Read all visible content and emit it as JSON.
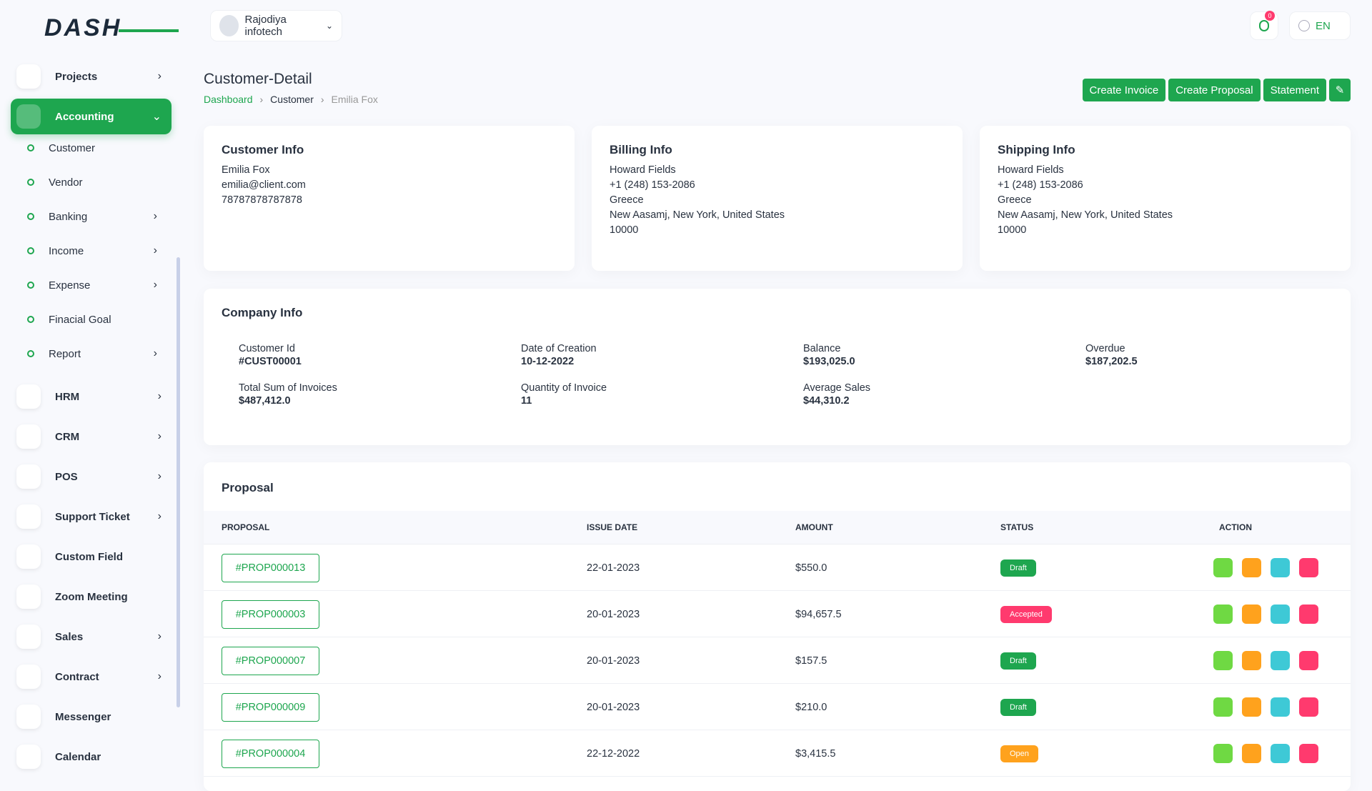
{
  "logo": "DASH",
  "header": {
    "user": "Rajodiya infotech",
    "notifications": "0",
    "language": "EN"
  },
  "sidebar": {
    "items": [
      {
        "label": "Projects",
        "expandable": true
      },
      {
        "label": "Accounting",
        "expandable": true,
        "active": true,
        "children": [
          {
            "label": "Customer"
          },
          {
            "label": "Vendor"
          },
          {
            "label": "Banking",
            "expandable": true
          },
          {
            "label": "Income",
            "expandable": true
          },
          {
            "label": "Expense",
            "expandable": true
          },
          {
            "label": "Finacial Goal"
          },
          {
            "label": "Report",
            "expandable": true
          }
        ]
      },
      {
        "label": "HRM",
        "expandable": true
      },
      {
        "label": "CRM",
        "expandable": true
      },
      {
        "label": "POS",
        "expandable": true
      },
      {
        "label": "Support Ticket",
        "expandable": true
      },
      {
        "label": "Custom Field"
      },
      {
        "label": "Zoom Meeting"
      },
      {
        "label": "Sales",
        "expandable": true
      },
      {
        "label": "Contract",
        "expandable": true
      },
      {
        "label": "Messenger"
      },
      {
        "label": "Calendar"
      }
    ]
  },
  "page": {
    "title": "Customer-Detail",
    "breadcrumb": [
      "Dashboard",
      "Customer",
      "Emilia Fox"
    ],
    "buttons": [
      "Create Invoice",
      "Create Proposal",
      "Statement"
    ]
  },
  "cards": [
    {
      "title": "Customer Info",
      "lines": [
        "Emilia Fox",
        "emilia@client.com",
        "78787878787878"
      ]
    },
    {
      "title": "Billing Info",
      "lines": [
        "Howard Fields",
        "+1 (248) 153-2086",
        "Greece",
        "New Aasamj, New York, United States",
        "10000"
      ]
    },
    {
      "title": "Shipping Info",
      "lines": [
        "Howard Fields",
        "+1 (248) 153-2086",
        "Greece",
        "New Aasamj, New York, United States",
        "10000"
      ]
    }
  ],
  "company_info": {
    "title": "Company Info",
    "fields": [
      {
        "label": "Customer Id",
        "value": "#CUST00001"
      },
      {
        "label": "Date of Creation",
        "value": "10-12-2022"
      },
      {
        "label": "Balance",
        "value": "$193,025.0"
      },
      {
        "label": "Overdue",
        "value": "$187,202.5"
      },
      {
        "label": "Total Sum of Invoices",
        "value": "$487,412.0"
      },
      {
        "label": "Quantity of Invoice",
        "value": "11"
      },
      {
        "label": "Average Sales",
        "value": "$44,310.2"
      }
    ]
  },
  "proposal": {
    "title": "Proposal",
    "columns": [
      "PROPOSAL",
      "ISSUE DATE",
      "AMOUNT",
      "STATUS",
      "ACTION"
    ],
    "rows": [
      {
        "id": "#PROP000013",
        "date": "22-01-2023",
        "amount": "$550.0",
        "status": "Draft",
        "status_color": "#1ea64f"
      },
      {
        "id": "#PROP000003",
        "date": "20-01-2023",
        "amount": "$94,657.5",
        "status": "Accepted",
        "status_color": "#ff3a6e"
      },
      {
        "id": "#PROP000007",
        "date": "20-01-2023",
        "amount": "$157.5",
        "status": "Draft",
        "status_color": "#1ea64f"
      },
      {
        "id": "#PROP000009",
        "date": "20-01-2023",
        "amount": "$210.0",
        "status": "Draft",
        "status_color": "#1ea64f"
      },
      {
        "id": "#PROP000004",
        "date": "22-12-2022",
        "amount": "$3,415.5",
        "status": "Open",
        "status_color": "#ffa21d"
      }
    ]
  }
}
